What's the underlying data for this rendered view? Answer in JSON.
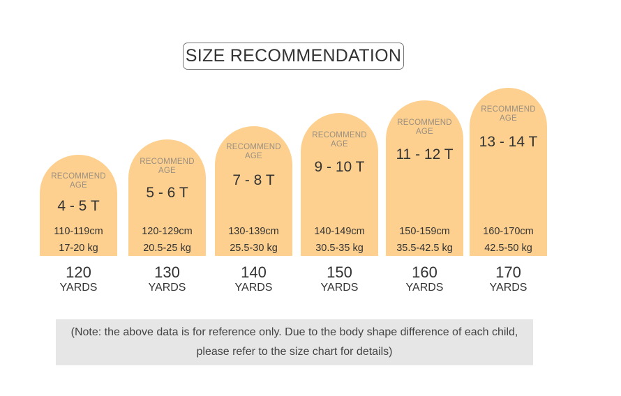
{
  "title": "SIZE RECOMMENDATION",
  "card_color": "#fdd08f",
  "cards": [
    {
      "recommend_line1": "RECOMMEND",
      "recommend_line2": "AGE",
      "age": "4 - 5 T",
      "height": "110-119cm",
      "weight": "17-20 kg",
      "size": "120",
      "unit": "YARDS"
    },
    {
      "recommend_line1": "RECOMMEND",
      "recommend_line2": "AGE",
      "age": "5 - 6 T",
      "height": "120-129cm",
      "weight": "20.5-25 kg",
      "size": "130",
      "unit": "YARDS"
    },
    {
      "recommend_line1": "RECOMMEND",
      "recommend_line2": "AGE",
      "age": "7 - 8 T",
      "height": "130-139cm",
      "weight": "25.5-30 kg",
      "size": "140",
      "unit": "YARDS"
    },
    {
      "recommend_line1": "RECOMMEND",
      "recommend_line2": "AGE",
      "age": "9 - 10 T",
      "height": "140-149cm",
      "weight": "30.5-35 kg",
      "size": "150",
      "unit": "YARDS"
    },
    {
      "recommend_line1": "RECOMMEND",
      "recommend_line2": "AGE",
      "age": "11 - 12 T",
      "height": "150-159cm",
      "weight": "35.5-42.5 kg",
      "size": "160",
      "unit": "YARDS"
    },
    {
      "recommend_line1": "RECOMMEND",
      "recommend_line2": "AGE",
      "age": "13 - 14 T",
      "height": "160-170cm",
      "weight": "42.5-50 kg",
      "size": "170",
      "unit": "YARDS"
    }
  ],
  "note": {
    "line1": "(Note: the above data is for reference only. Due to the body shape difference of each child,",
    "line2": "please refer to the size chart for details)"
  }
}
